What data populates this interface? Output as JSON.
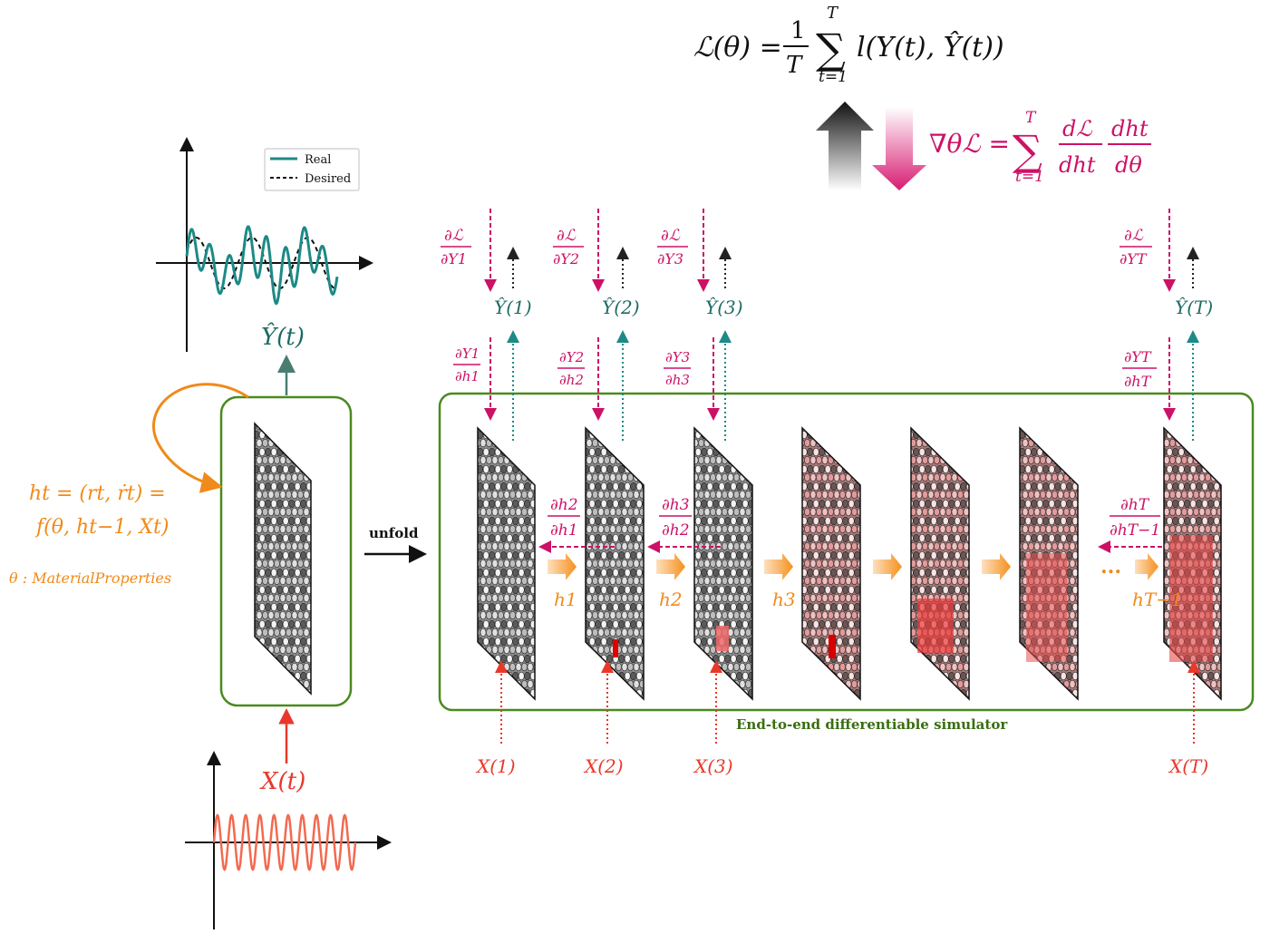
{
  "title_equation": {
    "lhs": "ℒ(θ) =",
    "frac_num": "1",
    "frac_den": "T",
    "sum_top": "T",
    "sum_bottom": "t=1",
    "rhs": "l(Y(t), Ŷ(t))"
  },
  "gradient_equation": {
    "lhs": "∇θℒ =",
    "sum_top": "T",
    "sum_bottom": "t=1",
    "frac1_num": "dℒ",
    "frac1_den": "dht",
    "frac2_num": "dht",
    "frac2_den": "dθ"
  },
  "legend": {
    "real": "Real",
    "desired": "Desired"
  },
  "left_model": {
    "output_label": "Ŷ(t)",
    "input_label": "X(t)",
    "state_eq_line1": "ht = (rt, ṙt) =",
    "state_eq_line2": "f(θ, ht−1, Xt)",
    "theta_label": "θ : MaterialProperties",
    "unfold_label": "unfold"
  },
  "unrolled": {
    "caption": "End-to-end differentiable simulator",
    "outputs": [
      "Ŷ(1)",
      "Ŷ(2)",
      "Ŷ(3)",
      "Ŷ(T)"
    ],
    "inputs": [
      "X(1)",
      "X(2)",
      "X(3)",
      "X(T)"
    ],
    "dL_dY": [
      {
        "num": "∂ℒ",
        "den": "∂Y1"
      },
      {
        "num": "∂ℒ",
        "den": "∂Y2"
      },
      {
        "num": "∂ℒ",
        "den": "∂Y3"
      },
      {
        "num": "∂ℒ",
        "den": "∂YT"
      }
    ],
    "dY_dh": [
      {
        "num": "∂Y1",
        "den": "∂h1"
      },
      {
        "num": "∂Y2",
        "den": "∂h2"
      },
      {
        "num": "∂Y3",
        "den": "∂h3"
      },
      {
        "num": "∂YT",
        "den": "∂hT"
      }
    ],
    "dh_dh": [
      {
        "num": "∂h2",
        "den": "∂h1"
      },
      {
        "num": "∂h3",
        "den": "∂h2"
      },
      {
        "num": "∂hT",
        "den": "∂hT−1"
      }
    ],
    "states": [
      "h1",
      "h2",
      "h3",
      "hT−1"
    ],
    "ellipsis": "..."
  },
  "colors": {
    "magenta": "#cc1166",
    "teal": "#1d8a86",
    "orange": "#f08a1a",
    "red": "#e8382a",
    "green": "#4a8a1e",
    "caption_green": "#3a6e12"
  }
}
